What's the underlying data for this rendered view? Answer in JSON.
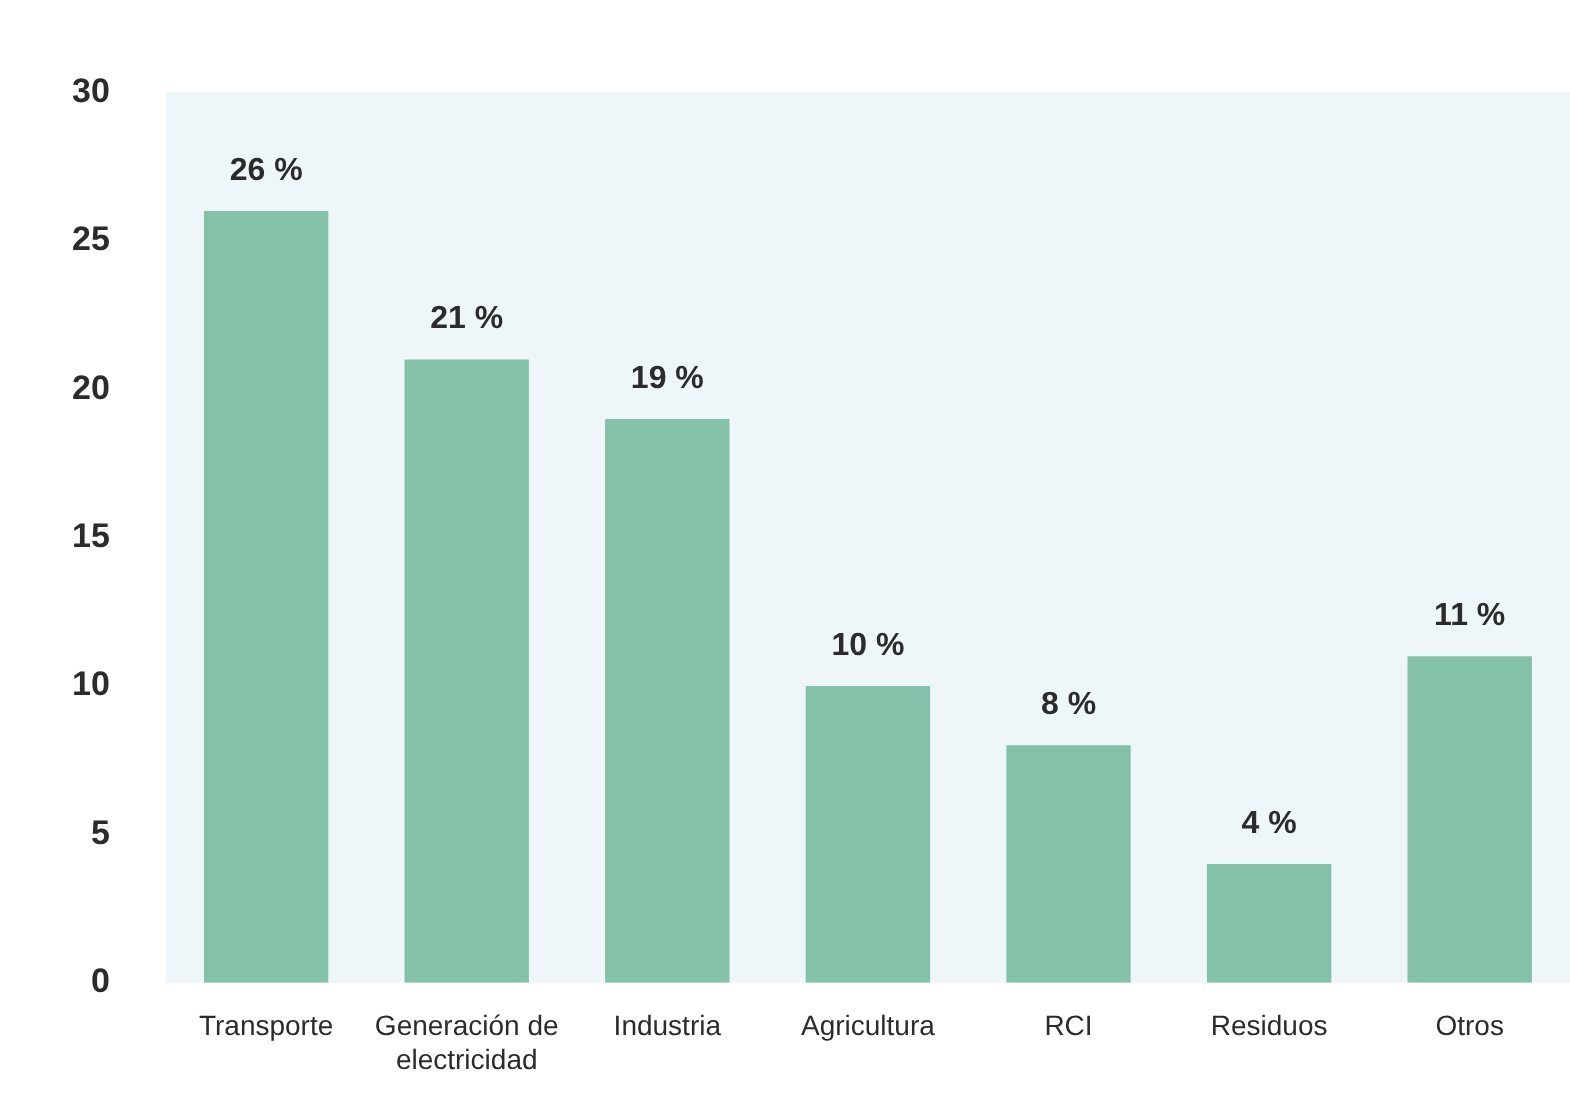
{
  "chart_data": {
    "type": "bar",
    "categories": [
      "Transporte",
      "Generación de electricidad",
      "Industria",
      "Agricultura",
      "RCI",
      "Residuos",
      "Otros"
    ],
    "values": [
      26,
      21,
      19,
      10,
      8,
      4,
      11
    ],
    "value_labels": [
      "26 %",
      "21 %",
      "19 %",
      "10 %",
      "8 %",
      "4 %",
      "11 %"
    ],
    "color": "#83c1a8",
    "ylim": [
      0,
      30
    ],
    "yticks": [
      0,
      5,
      10,
      15,
      20,
      25,
      30
    ],
    "grid": false,
    "legend": false
  }
}
